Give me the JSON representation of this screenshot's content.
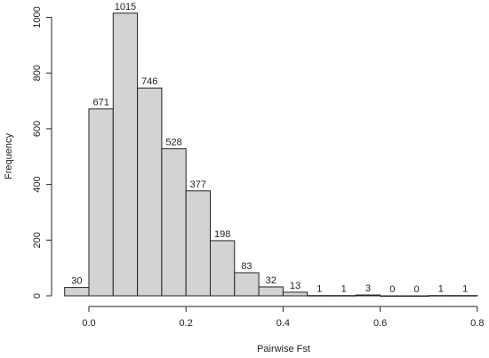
{
  "chart_data": {
    "type": "bar",
    "subtype": "histogram",
    "title": "",
    "xlabel": "Pairwise Fst",
    "ylabel": "Frequency",
    "bin_edges": [
      -0.05,
      0.0,
      0.05,
      0.1,
      0.15,
      0.2,
      0.25,
      0.3,
      0.35,
      0.4,
      0.45,
      0.5,
      0.55,
      0.6,
      0.65,
      0.7,
      0.75,
      0.8
    ],
    "values": [
      30,
      671,
      1015,
      746,
      528,
      377,
      198,
      83,
      32,
      13,
      1,
      1,
      3,
      0,
      0,
      1,
      1
    ],
    "xlim": [
      -0.05,
      0.8
    ],
    "ylim": [
      0,
      1015
    ],
    "x_ticks": [
      0.0,
      0.2,
      0.4,
      0.6,
      0.8
    ],
    "x_tick_labels": [
      "0.0",
      "0.2",
      "0.4",
      "0.6",
      "0.8"
    ],
    "y_ticks": [
      0,
      200,
      400,
      600,
      800,
      1000
    ],
    "y_tick_labels": [
      "0",
      "200",
      "400",
      "600",
      "800",
      "1000"
    ],
    "grid": false,
    "legend": "none",
    "bar_fill": "#d3d3d3",
    "bar_stroke": "#222222"
  }
}
